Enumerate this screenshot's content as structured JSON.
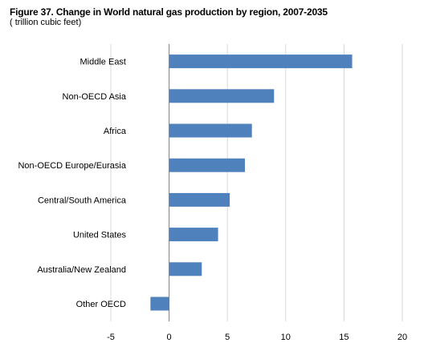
{
  "chart_data": {
    "type": "bar",
    "orientation": "horizontal",
    "title": "Figure 37. Change in World natural gas production by region, 2007-2035",
    "subtitle": "( trillion cubic feet)",
    "categories": [
      "Middle East",
      "Non-OECD Asia",
      "Africa",
      "Non-OECD Europe/Eurasia",
      "Central/South America",
      "United States",
      "Australia/New Zealand",
      "Other OECD"
    ],
    "values": [
      15.7,
      9.0,
      7.1,
      6.5,
      5.2,
      4.2,
      2.8,
      -1.6
    ],
    "xlim": [
      -5,
      20
    ],
    "xticks": [
      -5,
      0,
      5,
      10,
      15,
      20
    ],
    "xlabel": "",
    "ylabel": "",
    "grid": "vertical",
    "legend": "none",
    "bar_color": "#4f81bd",
    "grid_color": "#d9d9d9"
  }
}
